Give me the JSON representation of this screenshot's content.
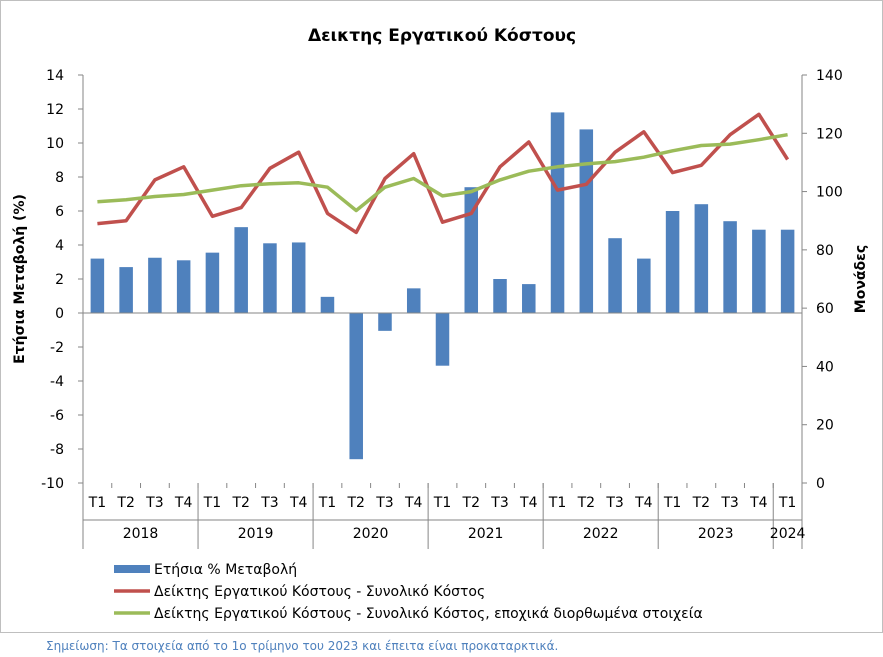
{
  "chart_data": {
    "type": "bar+line",
    "title": "Δεικτης Εργατικού Κόστους",
    "ylabel_left": "Ετήσια Μεταβολή (%)",
    "ylabel_right": "Μονάδες",
    "ylim_left": [
      -10,
      14
    ],
    "ylim_right": [
      0,
      140
    ],
    "yticks_left": [
      -10,
      -8,
      -6,
      -4,
      -2,
      0,
      2,
      4,
      6,
      8,
      10,
      12,
      14
    ],
    "yticks_right": [
      0,
      20,
      40,
      60,
      80,
      100,
      120,
      140
    ],
    "quarters": [
      "Τ1",
      "Τ2",
      "Τ3",
      "Τ4",
      "Τ1",
      "Τ2",
      "Τ3",
      "Τ4",
      "Τ1",
      "Τ2",
      "Τ3",
      "Τ4",
      "Τ1",
      "Τ2",
      "Τ3",
      "Τ4",
      "Τ1",
      "Τ2",
      "Τ3",
      "Τ4",
      "Τ1",
      "Τ2",
      "Τ3",
      "Τ4",
      "Τ1"
    ],
    "years": [
      {
        "label": "2018",
        "count": 4
      },
      {
        "label": "2019",
        "count": 4
      },
      {
        "label": "2020",
        "count": 4
      },
      {
        "label": "2021",
        "count": 4
      },
      {
        "label": "2022",
        "count": 4
      },
      {
        "label": "2023",
        "count": 4
      },
      {
        "label": "2024",
        "count": 1
      }
    ],
    "series": [
      {
        "name": "Ετήσια % Μεταβολή",
        "type": "bar",
        "axis": "left",
        "color": "#4f81bd",
        "values": [
          3.2,
          2.7,
          3.25,
          3.1,
          3.55,
          5.05,
          4.1,
          4.15,
          0.95,
          -8.6,
          -1.05,
          1.45,
          -3.1,
          7.4,
          2.0,
          1.7,
          11.8,
          10.8,
          4.4,
          3.2,
          6.0,
          6.4,
          5.4,
          4.9,
          4.9
        ]
      },
      {
        "name": "Δείκτης Εργατικού Κόστους - Συνολικό Κόστος",
        "type": "line",
        "axis": "right",
        "color": "#c0504d",
        "values": [
          89.0,
          90.0,
          104.0,
          108.5,
          91.5,
          94.5,
          108.0,
          113.5,
          92.5,
          86.0,
          104.5,
          113.0,
          89.5,
          92.5,
          108.5,
          117.0,
          100.5,
          102.5,
          113.5,
          120.5,
          106.5,
          109.0,
          119.5,
          126.5,
          111.0
        ]
      },
      {
        "name": "Δείκτης Εργατικού Κόστους - Συνολικό Κόστος, εποχικά διορθωμένα στοιχεία",
        "type": "line",
        "axis": "right",
        "color": "#9bbb59",
        "values": [
          96.5,
          97.2,
          98.3,
          99.0,
          100.5,
          102.0,
          102.7,
          103.0,
          101.5,
          93.5,
          101.5,
          104.5,
          98.5,
          100.0,
          104.0,
          107.0,
          108.5,
          109.5,
          110.3,
          111.8,
          114.0,
          115.8,
          116.3,
          117.8,
          119.5
        ]
      }
    ]
  },
  "note": "Σημείωση: Τα στοιχεία από το 1ο τρίμηνο του 2023 και έπειτα είναι προκαταρκτικά."
}
